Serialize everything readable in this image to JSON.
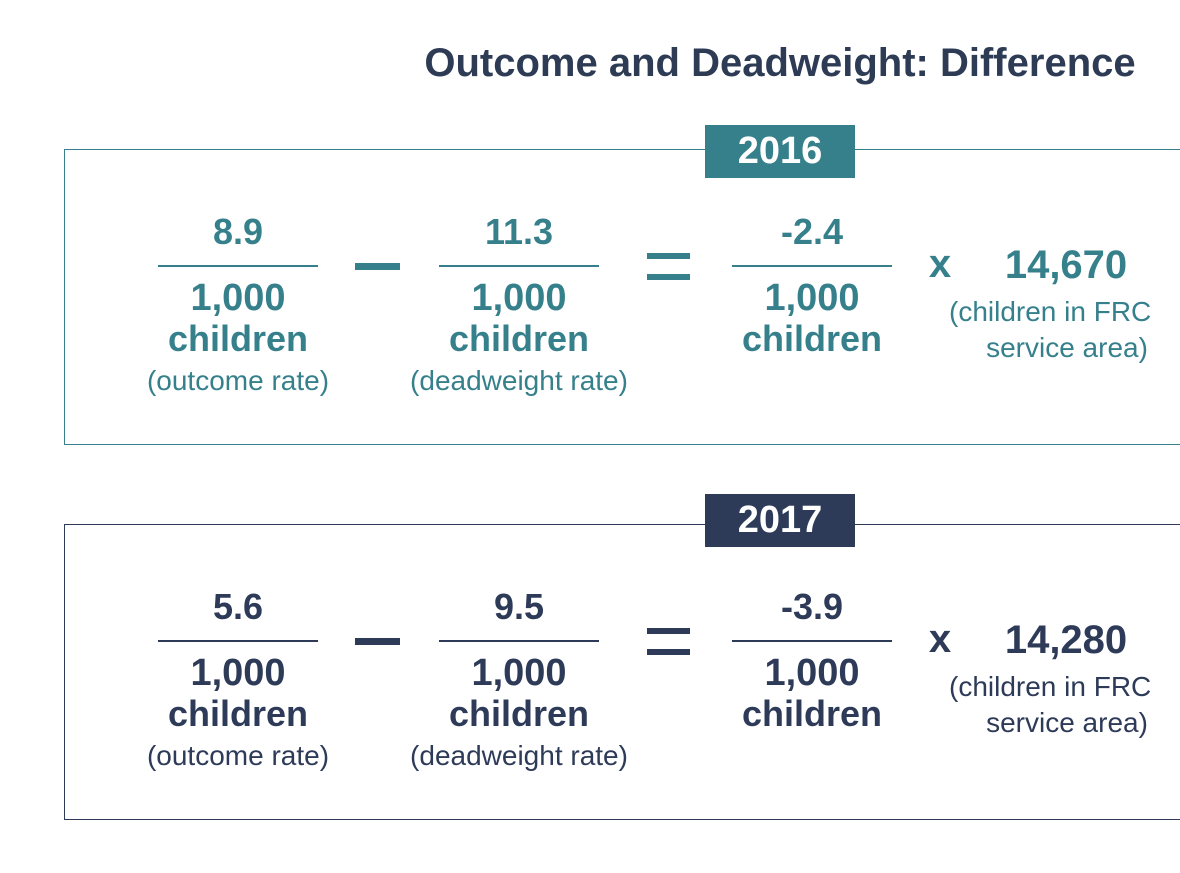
{
  "title": "Outcome and Deadweight: Difference",
  "panels": [
    {
      "year": "2016",
      "terms": [
        {
          "numerator": "8.9",
          "denominator": "1,000",
          "unit": "children",
          "note": "(outcome rate)"
        },
        {
          "numerator": "11.3",
          "denominator": "1,000",
          "unit": "children",
          "note": "(deadweight rate)"
        },
        {
          "numerator": "-2.4",
          "denominator": "1,000",
          "unit": "children"
        }
      ],
      "operator": "x",
      "multiplier": "14,670",
      "multiplier_note": [
        "(children in FRC",
        "service area)"
      ]
    },
    {
      "year": "2017",
      "terms": [
        {
          "numerator": "5.6",
          "denominator": "1,000",
          "unit": "children",
          "note": "(outcome rate)"
        },
        {
          "numerator": "9.5",
          "denominator": "1,000",
          "unit": "children",
          "note": "(deadweight rate)"
        },
        {
          "numerator": "-3.9",
          "denominator": "1,000",
          "unit": "children"
        }
      ],
      "operator": "x",
      "multiplier": "14,280",
      "multiplier_note": [
        "(children in FRC",
        "service area)"
      ]
    }
  ]
}
